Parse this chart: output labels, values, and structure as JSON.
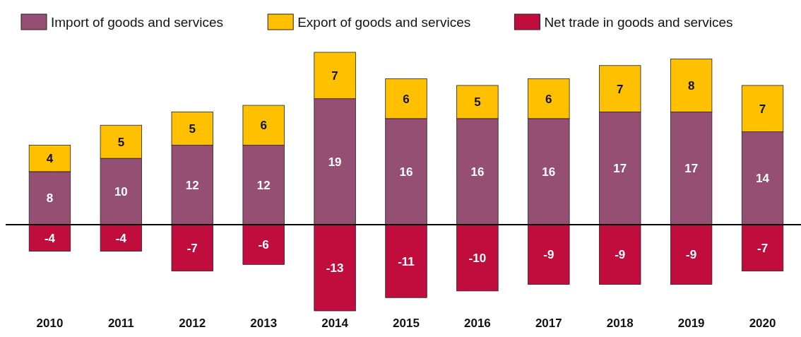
{
  "chart_data": {
    "type": "bar",
    "stacked": true,
    "data_labels": true,
    "legend": "top left",
    "categories": [
      "2010",
      "2011",
      "2012",
      "2013",
      "2014",
      "2015",
      "2016",
      "2017",
      "2018",
      "2019",
      "2020"
    ],
    "series": [
      {
        "name": "Import of goods and services",
        "color": "#954f72",
        "values": [
          8,
          10,
          12,
          12,
          19,
          16,
          16,
          16,
          17,
          17,
          14
        ]
      },
      {
        "name": "Export of goods and services",
        "color": "#ffc000",
        "values": [
          4,
          5,
          5,
          6,
          7,
          6,
          5,
          6,
          7,
          8,
          7
        ]
      },
      {
        "name": "Net trade in goods and services",
        "color": "#c00d3e",
        "values": [
          -4,
          -4,
          -7,
          -6,
          -13,
          -11,
          -10,
          -9,
          -9,
          -9,
          -7
        ]
      }
    ]
  }
}
